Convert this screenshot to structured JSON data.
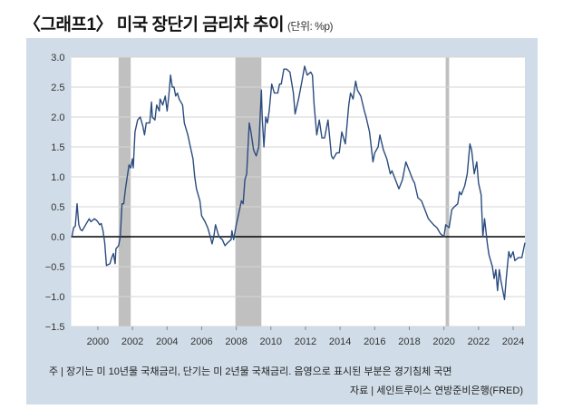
{
  "title": "〈그래프1〉 미국 장단기 금리차 추이",
  "unit": "(단위: %p)",
  "note": "주 | 장기는 미 10년물 국채금리, 단기는 미 2년물 국채금리. 음영으로 표시된 부분은 경기침체 국면",
  "source": "자료 | 세인트루이스 연방준비은행(FRED)",
  "colors": {
    "line": "#2b4c7e",
    "recession": "#c0c0c0",
    "panel": "#d0dde8",
    "zero": "#000000"
  },
  "chart_data": {
    "type": "line",
    "title": "〈그래프1〉 미국 장단기 금리차 추이",
    "ylabel": "%p",
    "xlim": [
      1998.46,
      2024.68
    ],
    "ylim": [
      -1.5,
      3.0
    ],
    "yticks": [
      3.0,
      2.5,
      2.0,
      1.5,
      1.0,
      0.5,
      0.0,
      -0.5,
      -1.0,
      -1.5
    ],
    "ytick_labels": [
      "3.0",
      "2.5",
      "2.0",
      "1.5",
      "1.0",
      "0.5",
      "0.0",
      "−0.5",
      "−1.0",
      "−1.5"
    ],
    "xticks": [
      2000,
      2002,
      2004,
      2006,
      2008,
      2010,
      2012,
      2014,
      2016,
      2018,
      2020,
      2022,
      2024
    ],
    "xtick_labels": [
      "2000",
      "2002",
      "2004",
      "2006",
      "2008",
      "2010",
      "2012",
      "2014",
      "2016",
      "2018",
      "2020",
      "2022",
      "2024"
    ],
    "grid": true,
    "recessions": [
      [
        2001.2,
        2001.9
      ],
      [
        2007.95,
        2009.45
      ],
      [
        2020.1,
        2020.3
      ]
    ],
    "series": [
      {
        "name": "10Y-2Y spread",
        "x": [
          1998.5,
          1998.6,
          1998.7,
          1998.8,
          1998.9,
          1999.0,
          1999.1,
          1999.3,
          1999.5,
          1999.6,
          1999.8,
          1999.9,
          2000.0,
          2000.1,
          2000.2,
          2000.3,
          2000.4,
          2000.5,
          2000.7,
          2000.8,
          2000.9,
          2001.0,
          2001.05,
          2001.2,
          2001.3,
          2001.4,
          2001.5,
          2001.6,
          2001.8,
          2001.9,
          2002.0,
          2002.05,
          2002.15,
          2002.3,
          2002.45,
          2002.6,
          2002.7,
          2002.8,
          2003.0,
          2003.1,
          2003.15,
          2003.3,
          2003.4,
          2003.55,
          2003.6,
          2003.75,
          2003.9,
          2004.0,
          2004.1,
          2004.2,
          2004.3,
          2004.4,
          2004.5,
          2004.6,
          2004.7,
          2004.9,
          2005.0,
          2005.2,
          2005.35,
          2005.5,
          2005.6,
          2005.7,
          2005.9,
          2006.0,
          2006.2,
          2006.35,
          2006.5,
          2006.6,
          2006.7,
          2006.8,
          2007.0,
          2007.2,
          2007.35,
          2007.5,
          2007.7,
          2007.75,
          2007.85,
          2008.0,
          2008.15,
          2008.3,
          2008.4,
          2008.5,
          2008.6,
          2008.75,
          2008.85,
          2009.0,
          2009.15,
          2009.3,
          2009.45,
          2009.5,
          2009.6,
          2009.7,
          2009.8,
          2009.9,
          2010.05,
          2010.2,
          2010.4,
          2010.5,
          2010.6,
          2010.75,
          2010.9,
          2011.1,
          2011.3,
          2011.4,
          2011.6,
          2011.8,
          2011.95,
          2012.1,
          2012.3,
          2012.4,
          2012.5,
          2012.65,
          2012.8,
          2012.95,
          2013.1,
          2013.3,
          2013.5,
          2013.6,
          2013.8,
          2013.95,
          2014.1,
          2014.3,
          2014.5,
          2014.6,
          2014.75,
          2014.9,
          2015.0,
          2015.2,
          2015.4,
          2015.5,
          2015.7,
          2015.9,
          2016.0,
          2016.2,
          2016.3,
          2016.5,
          2016.7,
          2016.9,
          2017.0,
          2017.2,
          2017.4,
          2017.6,
          2017.8,
          2018.0,
          2018.2,
          2018.3,
          2018.5,
          2018.7,
          2018.9,
          2019.1,
          2019.4,
          2019.6,
          2019.8,
          2020.0,
          2020.1,
          2020.3,
          2020.45,
          2020.6,
          2020.8,
          2020.9,
          2021.0,
          2021.2,
          2021.35,
          2021.5,
          2021.6,
          2021.75,
          2021.9,
          2022.0,
          2022.15,
          2022.25,
          2022.35,
          2022.5,
          2022.6,
          2022.8,
          2022.9,
          2023.0,
          2023.1,
          2023.2,
          2023.3,
          2023.5,
          2023.6,
          2023.75,
          2023.85,
          2024.0,
          2024.1,
          2024.3,
          2024.5,
          2024.68
        ],
        "y": [
          0.0,
          0.15,
          0.18,
          0.55,
          0.2,
          0.12,
          0.1,
          0.2,
          0.3,
          0.25,
          0.3,
          0.28,
          0.25,
          0.2,
          0.22,
          0.1,
          -0.1,
          -0.48,
          -0.45,
          -0.35,
          -0.28,
          -0.45,
          -0.2,
          -0.15,
          0.0,
          0.55,
          0.55,
          0.8,
          1.2,
          1.15,
          1.3,
          1.15,
          1.75,
          1.95,
          2.0,
          1.85,
          1.7,
          1.9,
          1.9,
          2.25,
          2.0,
          1.95,
          2.2,
          2.1,
          2.3,
          2.2,
          2.35,
          2.1,
          2.35,
          2.7,
          2.5,
          2.5,
          2.35,
          2.4,
          2.3,
          2.2,
          1.9,
          1.7,
          1.5,
          1.3,
          1.0,
          0.8,
          0.6,
          0.35,
          0.25,
          0.15,
          0.0,
          -0.12,
          0.0,
          0.2,
          0.0,
          -0.05,
          -0.15,
          -0.1,
          -0.05,
          0.1,
          -0.05,
          0.2,
          0.4,
          0.6,
          0.55,
          0.95,
          1.05,
          1.9,
          1.75,
          1.45,
          1.35,
          1.5,
          2.45,
          2.0,
          1.5,
          2.0,
          1.9,
          2.1,
          2.55,
          2.4,
          2.4,
          2.55,
          2.55,
          2.8,
          2.8,
          2.75,
          2.4,
          2.05,
          2.3,
          2.6,
          2.85,
          2.7,
          2.75,
          2.7,
          2.2,
          1.7,
          1.95,
          1.65,
          1.65,
          1.95,
          1.35,
          1.3,
          1.4,
          1.4,
          1.75,
          1.55,
          2.2,
          2.4,
          2.3,
          2.6,
          2.45,
          2.35,
          2.1,
          2.0,
          1.75,
          1.25,
          1.4,
          1.5,
          1.7,
          1.45,
          1.3,
          1.05,
          1.1,
          0.95,
          0.8,
          0.95,
          1.25,
          1.1,
          0.95,
          0.9,
          0.65,
          0.6,
          0.45,
          0.3,
          0.2,
          0.15,
          0.05,
          0.0,
          0.2,
          0.15,
          0.45,
          0.5,
          0.55,
          0.75,
          0.7,
          0.85,
          1.05,
          1.55,
          1.45,
          1.05,
          1.25,
          0.9,
          0.7,
          0.0,
          0.3,
          -0.1,
          -0.3,
          -0.5,
          -0.7,
          -0.55,
          -0.9,
          -0.55,
          -0.75,
          -1.05,
          -0.7,
          -0.25,
          -0.35,
          -0.25,
          -0.4,
          -0.35,
          -0.35,
          -0.1
        ]
      }
    ]
  }
}
